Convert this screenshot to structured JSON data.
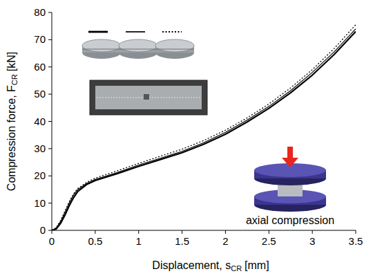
{
  "chart_data": {
    "type": "line",
    "x_label": {
      "text": "Displacement, s",
      "sub": "CR",
      "unit": "[mm]"
    },
    "y_label": {
      "text": "Compression force, F",
      "sub": "CR",
      "unit": "[kN]"
    },
    "annotations": [
      "axial compression"
    ],
    "x": [
      0,
      0.05,
      0.1,
      0.15,
      0.2,
      0.25,
      0.3,
      0.4,
      0.5,
      0.75,
      1,
      1.25,
      1.5,
      1.75,
      2,
      2.25,
      2.5,
      2.75,
      3,
      3.25,
      3.5
    ],
    "series": [
      {
        "color": "#000000",
        "line_style": "thick",
        "values": [
          0,
          0.5,
          2.5,
          5.5,
          9,
          12,
          14.3,
          16.8,
          18.3,
          20.8,
          23.5,
          26,
          28.5,
          31.6,
          35.3,
          39.8,
          44.8,
          50.5,
          57,
          64.5,
          73
        ]
      },
      {
        "color": "#000000",
        "line_style": "solid",
        "values": [
          0,
          0.8,
          3.2,
          6.5,
          10,
          13,
          15,
          17.2,
          18.7,
          21.2,
          24,
          26.5,
          29,
          32.2,
          36,
          40.5,
          45.5,
          51.3,
          58,
          65.5,
          74
        ]
      },
      {
        "color": "#000000",
        "line_style": "dotted",
        "values": [
          0,
          1,
          3.5,
          7,
          10.5,
          13.4,
          15.4,
          17.6,
          19.2,
          21.8,
          24.6,
          27.2,
          29.8,
          33,
          36.8,
          41.3,
          46.4,
          52.3,
          59,
          66.7,
          75.5
        ]
      }
    ],
    "xlim": [
      0,
      3.5
    ],
    "xticks": [
      0,
      0.5,
      1,
      1.5,
      2,
      2.5,
      3,
      3.5
    ],
    "ylim": [
      0,
      80
    ],
    "yticks": [
      0,
      10,
      20,
      30,
      40,
      50,
      60,
      70,
      80
    ],
    "grid": false
  }
}
